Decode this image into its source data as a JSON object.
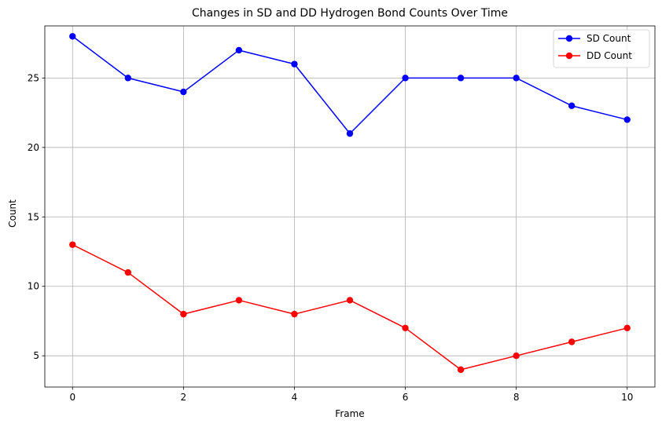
{
  "chart_data": {
    "type": "line",
    "title": "Changes in SD and DD Hydrogen Bond Counts Over Time",
    "xlabel": "Frame",
    "ylabel": "Count",
    "x": [
      0,
      1,
      2,
      3,
      4,
      5,
      6,
      7,
      8,
      9,
      10
    ],
    "xlim": [
      -0.5,
      10.5
    ],
    "ylim": [
      2.75,
      28.75
    ],
    "xticks": [
      0,
      2,
      4,
      6,
      8,
      10
    ],
    "yticks": [
      5,
      10,
      15,
      20,
      25
    ],
    "grid": true,
    "legend_position": "top-right",
    "series": [
      {
        "name": "SD Count",
        "color": "#0000ff",
        "marker": "circle",
        "values": [
          28,
          25,
          24,
          27,
          26,
          21,
          25,
          25,
          25,
          23,
          22
        ]
      },
      {
        "name": "DD Count",
        "color": "#ff0000",
        "marker": "circle",
        "values": [
          13,
          11,
          8,
          9,
          8,
          9,
          7,
          4,
          5,
          6,
          7
        ]
      }
    ]
  }
}
